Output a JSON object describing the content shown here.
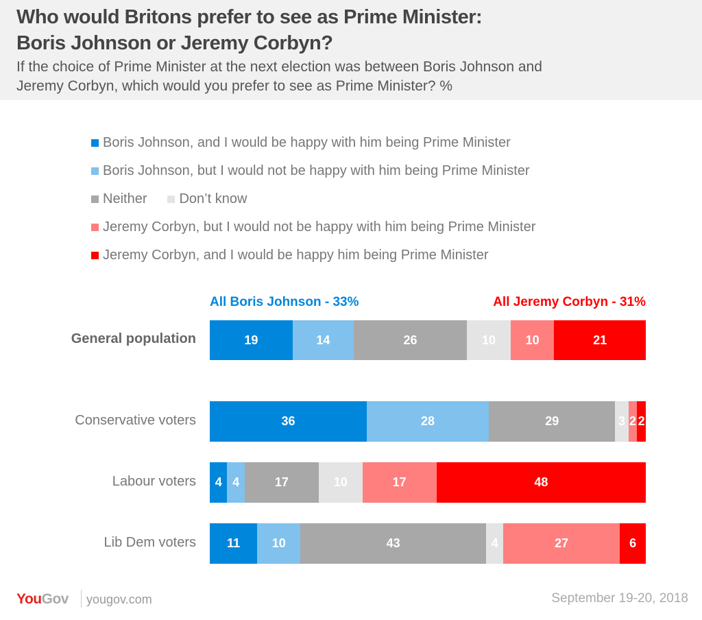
{
  "header": {
    "title_line1": "Who would Britons prefer to see as Prime Minister:",
    "title_line2": "Boris Johnson or Jeremy Corbyn?",
    "subtitle_line1": "If the choice of Prime Minister at the next election was between Boris Johnson and",
    "subtitle_line2": "Jeremy Corbyn, which would you prefer to see as Prime Minister? %"
  },
  "summary": {
    "boris_total": "All Boris Johnson - 33%",
    "corbyn_total": "All Jeremy Corbyn - 31%",
    "boris_color": "#0087dc",
    "corbyn_color": "#ff0000"
  },
  "chart_data": {
    "type": "bar",
    "orientation": "horizontal-stacked-100",
    "title": "Who would Britons prefer to see as Prime Minister: Boris Johnson or Jeremy Corbyn?",
    "subtitle": "If the choice of Prime Minister at the next election was between Boris Johnson and Jeremy Corbyn, which would you prefer to see as Prime Minister? %",
    "unit": "%",
    "legend_position": "top",
    "categories": [
      "General population",
      "Conservative voters",
      "Labour voters",
      "Lib Dem voters"
    ],
    "series": [
      {
        "name": "Boris Johnson, and I would be happy with him being Prime Minister",
        "color": "#0087dc",
        "values": [
          19,
          36,
          4,
          11
        ]
      },
      {
        "name": "Boris Johnson, but I would not be happy with him being Prime Minister",
        "color": "#80c1ed",
        "values": [
          14,
          28,
          4,
          10
        ]
      },
      {
        "name": "Neither",
        "color": "#a8a8a8",
        "values": [
          26,
          29,
          17,
          43
        ]
      },
      {
        "name": "Don't know",
        "color": "#e4e4e4",
        "values": [
          10,
          3,
          10,
          4
        ]
      },
      {
        "name": "Jeremy Corbyn, but I would not be happy with him being Prime Minister",
        "color": "#ff7f7f",
        "values": [
          10,
          2,
          17,
          27
        ]
      },
      {
        "name": "Jeremy Corbyn, and I would be happy him being Prime Minister",
        "color": "#ff0000",
        "values": [
          21,
          2,
          48,
          6
        ]
      }
    ],
    "annotations": [
      "All Boris Johnson - 33%",
      "All Jeremy Corbyn - 31%"
    ],
    "grid": false
  },
  "legend": {
    "items": [
      {
        "label": "Boris Johnson, and I would be happy with him being Prime Minister",
        "color": "#0087dc"
      },
      {
        "label": "Boris Johnson, but I would not be happy with him being Prime Minister",
        "color": "#80c1ed"
      },
      {
        "label": "Neither",
        "color": "#a8a8a8"
      },
      {
        "label": "Don’t know",
        "color": "#e4e4e4"
      },
      {
        "label": "Jeremy Corbyn, but I would not be happy with him being Prime Minister",
        "color": "#ff7f7f"
      },
      {
        "label": "Jeremy Corbyn, and I would be happy him being Prime Minister",
        "color": "#ff0000"
      }
    ]
  },
  "footer": {
    "logo_you": "You",
    "logo_gov": "Gov",
    "url": "yougov.com",
    "date": "September 19-20, 2018"
  }
}
